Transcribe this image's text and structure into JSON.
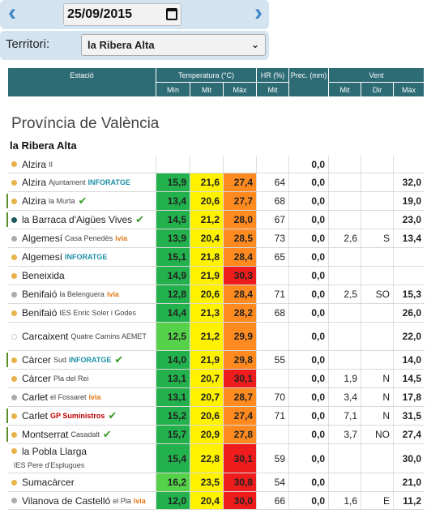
{
  "date": "25/09/2015",
  "territory_label": "Territori:",
  "territory_value": "la Ribera Alta",
  "headers": {
    "station": "Estació",
    "temp": "Temperatura (°C)",
    "hr": "HR (%)",
    "prec": "Prec. (mm)",
    "wind": "Vent",
    "min": "Mín",
    "mit": "Mit",
    "max": "Màx",
    "hr_mit": "Mit",
    "v_mit": "Mit",
    "v_dir": "Dir",
    "v_max": "Màx"
  },
  "province": "Província de València",
  "subregion": "la Ribera Alta",
  "colors": {
    "header": "#2d6b75",
    "green_dark": "#22b14c",
    "green_light": "#55d24a",
    "yellow": "#fff200",
    "orange": "#ff8a1f",
    "red": "#ee1c1c"
  },
  "rows": [
    {
      "name": "Alzira",
      "sub": "II",
      "badge": "",
      "dot": "#e8b24a",
      "check": false,
      "min": "",
      "mit": "",
      "max": "",
      "hr": "",
      "prec": "0,0",
      "vmit": "",
      "vdir": "",
      "vmax": "",
      "min_c": "",
      "mit_c": "",
      "max_c": "",
      "h": 22
    },
    {
      "name": "Alzira",
      "sub": "Ajuntament",
      "badge": "INFORATGE",
      "dot": "#e8b24a",
      "check": false,
      "min": "15,9",
      "mit": "21,6",
      "max": "27,4",
      "hr": "64",
      "prec": "0,0",
      "vmit": "",
      "vdir": "",
      "vmax": "32,0",
      "min_c": "#22b14c",
      "mit_c": "#fff200",
      "max_c": "#ff8a1f",
      "h": 23
    },
    {
      "name": "Alzira",
      "sub": "la Murta",
      "badge": "",
      "dot": "#e8b24a",
      "check": true,
      "min": "13,4",
      "mit": "20,6",
      "max": "27,7",
      "hr": "68",
      "prec": "0,0",
      "vmit": "",
      "vdir": "",
      "vmax": "19,0",
      "min_c": "#22b14c",
      "mit_c": "#fff200",
      "max_c": "#ff8a1f",
      "h": 23
    },
    {
      "name": "la Barraca d'Aigües Vives",
      "sub": "",
      "badge": "",
      "dot": "#1f5a5a",
      "check": true,
      "min": "14,5",
      "mit": "21,2",
      "max": "28,0",
      "hr": "67",
      "prec": "0,0",
      "vmit": "",
      "vdir": "",
      "vmax": "23,0",
      "min_c": "#22b14c",
      "mit_c": "#fff200",
      "max_c": "#ff8a1f",
      "h": 23
    },
    {
      "name": "Algemesí",
      "sub": "Casa Penedès",
      "badge": "ivia",
      "dot": "#aaaaaa",
      "check": false,
      "min": "13,9",
      "mit": "20,4",
      "max": "28,5",
      "hr": "73",
      "prec": "0,0",
      "vmit": "2,6",
      "vdir": "S",
      "vmax": "13,4",
      "min_c": "#22b14c",
      "mit_c": "#fff200",
      "max_c": "#ff8a1f",
      "h": 23
    },
    {
      "name": "Algemesí",
      "sub": "",
      "badge": "INFORATGE",
      "dot": "#e8b24a",
      "check": false,
      "min": "15,1",
      "mit": "21,8",
      "max": "28,4",
      "hr": "65",
      "prec": "0,0",
      "vmit": "",
      "vdir": "",
      "vmax": "",
      "min_c": "#22b14c",
      "mit_c": "#fff200",
      "max_c": "#ff8a1f",
      "h": 23
    },
    {
      "name": "Beneixida",
      "sub": "",
      "badge": "",
      "dot": "#e8b24a",
      "check": false,
      "min": "14,9",
      "mit": "21,9",
      "max": "30,3",
      "hr": "",
      "prec": "0,0",
      "vmit": "",
      "vdir": "",
      "vmax": "",
      "min_c": "#22b14c",
      "mit_c": "#fff200",
      "max_c": "#ee1c1c",
      "h": 23
    },
    {
      "name": "Benifaió",
      "sub": "la Belenguera",
      "badge": "ivia",
      "dot": "#aaaaaa",
      "check": false,
      "min": "12,8",
      "mit": "20,6",
      "max": "28,4",
      "hr": "71",
      "prec": "0,0",
      "vmit": "2,5",
      "vdir": "SO",
      "vmax": "15,3",
      "min_c": "#22b14c",
      "mit_c": "#fff200",
      "max_c": "#ff8a1f",
      "h": 23
    },
    {
      "name": "Benifaió",
      "sub": "IES Enric Soler i Godes",
      "badge": "",
      "dot": "#e8b24a",
      "check": false,
      "min": "14,4",
      "mit": "21,3",
      "max": "28,2",
      "hr": "68",
      "prec": "0,0",
      "vmit": "",
      "vdir": "",
      "vmax": "26,0",
      "min_c": "#22b14c",
      "mit_c": "#fff200",
      "max_c": "#ff8a1f",
      "h": 23
    },
    {
      "name": "Carcaixent",
      "sub": "Quatre Camins AEMET",
      "badge": "",
      "dot": "#ffffff",
      "check": false,
      "min": "12,5",
      "mit": "21,2",
      "max": "29,9",
      "hr": "",
      "prec": "0,0",
      "vmit": "",
      "vdir": "",
      "vmax": "22,0",
      "min_c": "#55d24a",
      "mit_c": "#fff200",
      "max_c": "#ff8a1f",
      "h": 35
    },
    {
      "name": "Càrcer",
      "sub": "Sud",
      "badge": "INFORATGE",
      "dot": "#e8b24a",
      "check": true,
      "min": "14,0",
      "mit": "21,9",
      "max": "29,8",
      "hr": "55",
      "prec": "0,0",
      "vmit": "",
      "vdir": "",
      "vmax": "14,0",
      "min_c": "#22b14c",
      "mit_c": "#fff200",
      "max_c": "#ff8a1f",
      "h": 23
    },
    {
      "name": "Càrcer",
      "sub": "Pla del Rei",
      "badge": "",
      "dot": "#e8b24a",
      "check": false,
      "min": "13,1",
      "mit": "20,7",
      "max": "30,1",
      "hr": "",
      "prec": "0,0",
      "vmit": "1,9",
      "vdir": "N",
      "vmax": "14,5",
      "min_c": "#22b14c",
      "mit_c": "#fff200",
      "max_c": "#ee1c1c",
      "h": 23
    },
    {
      "name": "Carlet",
      "sub": "el Fossaret",
      "badge": "ivia",
      "dot": "#aaaaaa",
      "check": false,
      "min": "13,1",
      "mit": "20,7",
      "max": "28,7",
      "hr": "70",
      "prec": "0,0",
      "vmit": "3,4",
      "vdir": "N",
      "vmax": "17,8",
      "min_c": "#22b14c",
      "mit_c": "#fff200",
      "max_c": "#ff8a1f",
      "h": 23
    },
    {
      "name": "Carlet",
      "sub": "",
      "badge": "GP Suministros",
      "dot": "#e8b24a",
      "check": true,
      "min": "15,2",
      "mit": "20,6",
      "max": "27,4",
      "hr": "71",
      "prec": "0,0",
      "vmit": "7,1",
      "vdir": "N",
      "vmax": "31,5",
      "min_c": "#22b14c",
      "mit_c": "#fff200",
      "max_c": "#ff8a1f",
      "h": 23
    },
    {
      "name": "Montserrat",
      "sub": "Casadalt",
      "badge": "",
      "dot": "#e8b24a",
      "check": true,
      "min": "15,7",
      "mit": "20,9",
      "max": "27,8",
      "hr": "",
      "prec": "0,0",
      "vmit": "3,7",
      "vdir": "NO",
      "vmax": "27,4",
      "min_c": "#22b14c",
      "mit_c": "#fff200",
      "max_c": "#ff8a1f",
      "h": 23
    },
    {
      "name": "la Pobla Llarga",
      "sub": "IES Pere d'Esplugues",
      "badge": "",
      "dot": "#e8b24a",
      "check": false,
      "min": "15,4",
      "mit": "22,8",
      "max": "30,1",
      "hr": "59",
      "prec": "0,0",
      "vmit": "",
      "vdir": "",
      "vmax": "30,0",
      "min_c": "#22b14c",
      "mit_c": "#fff200",
      "max_c": "#ee1c1c",
      "h": 36
    },
    {
      "name": "Sumacàrcer",
      "sub": "",
      "badge": "",
      "dot": "#e8b24a",
      "check": false,
      "min": "16,2",
      "mit": "23,5",
      "max": "30,8",
      "hr": "54",
      "prec": "0,0",
      "vmit": "",
      "vdir": "",
      "vmax": "21,0",
      "min_c": "#55d24a",
      "mit_c": "#fff200",
      "max_c": "#ee1c1c",
      "h": 23
    },
    {
      "name": "Vilanova de Castelló",
      "sub": "el Pla",
      "badge": "ivia",
      "dot": "#aaaaaa",
      "check": false,
      "min": "12,0",
      "mit": "20,4",
      "max": "30,0",
      "hr": "66",
      "prec": "0,0",
      "vmit": "1,6",
      "vdir": "E",
      "vmax": "11,2",
      "min_c": "#22b14c",
      "mit_c": "#fff200",
      "max_c": "#ee1c1c",
      "h": 22
    }
  ]
}
